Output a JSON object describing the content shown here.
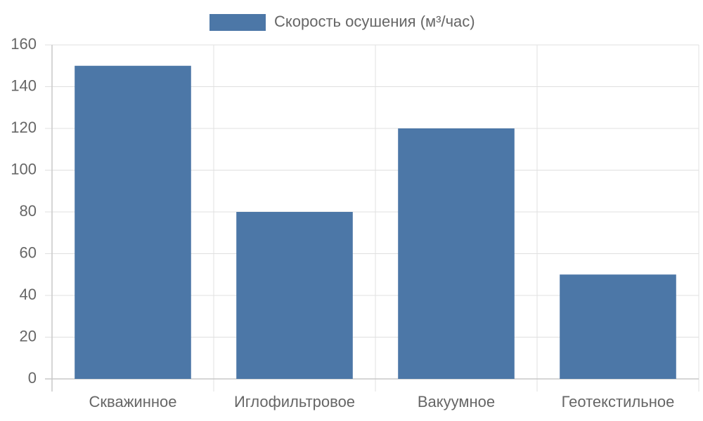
{
  "chart_data": {
    "type": "bar",
    "categories": [
      "Скважинное",
      "Иглофильтровое",
      "Вакуумное",
      "Геотекстильное"
    ],
    "series": [
      {
        "name": "Скорость осушения (м³/час)",
        "color": "#4c77a7",
        "values": [
          150,
          80,
          120,
          50
        ]
      }
    ],
    "ylim": [
      0,
      160
    ],
    "yticks": [
      0,
      20,
      40,
      60,
      80,
      100,
      120,
      140,
      160
    ],
    "grid": true,
    "legend": "top"
  }
}
